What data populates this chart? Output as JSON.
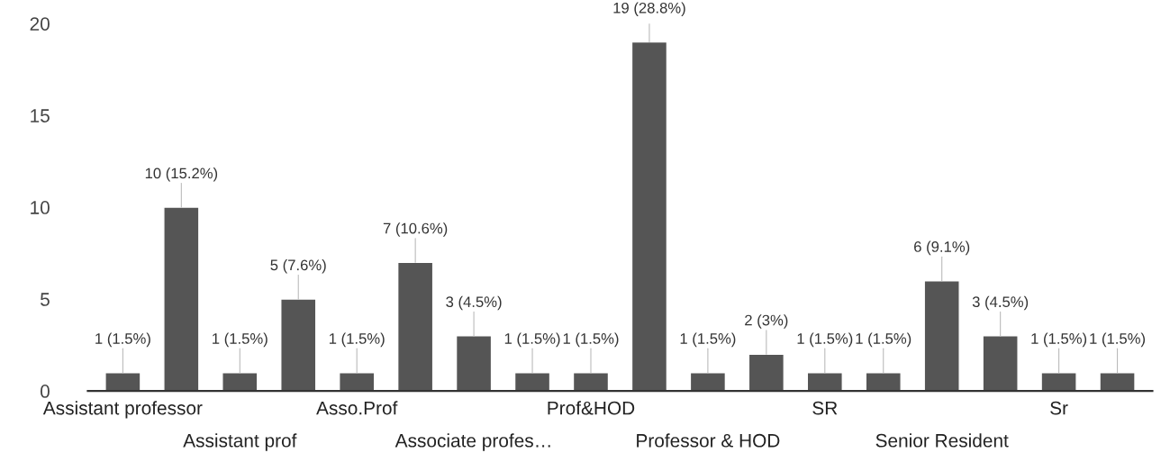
{
  "chart_data": {
    "type": "bar",
    "categories": [
      "Assistant professor",
      null,
      "Assistant prof",
      null,
      "Asso.Prof",
      null,
      "Associate profes…",
      null,
      "Prof&HOD",
      null,
      "Professor & HOD",
      null,
      "SR",
      null,
      "Senior Resident",
      null,
      "Sr",
      null
    ],
    "values": [
      1,
      10,
      1,
      5,
      1,
      7,
      3,
      1,
      1,
      19,
      1,
      2,
      1,
      1,
      6,
      3,
      1,
      1
    ],
    "value_labels": [
      "1 (1.5%)",
      "10 (15.2%)",
      "1 (1.5%)",
      "5 (7.6%)",
      "1 (1.5%)",
      "7 (10.6%)",
      "3 (4.5%)",
      "1 (1.5%)",
      "1 (1.5%)",
      "19 (28.8%)",
      "1 (1.5%)",
      "2 (3%)",
      "1 (1.5%)",
      "1 (1.5%)",
      "6 (9.1%)",
      "3 (4.5%)",
      "1 (1.5%)",
      "1 (1.5%)"
    ],
    "color": "#555555",
    "ylim": [
      0,
      20
    ],
    "yticks": [
      0,
      5,
      10,
      15,
      20
    ],
    "grid": false
  }
}
